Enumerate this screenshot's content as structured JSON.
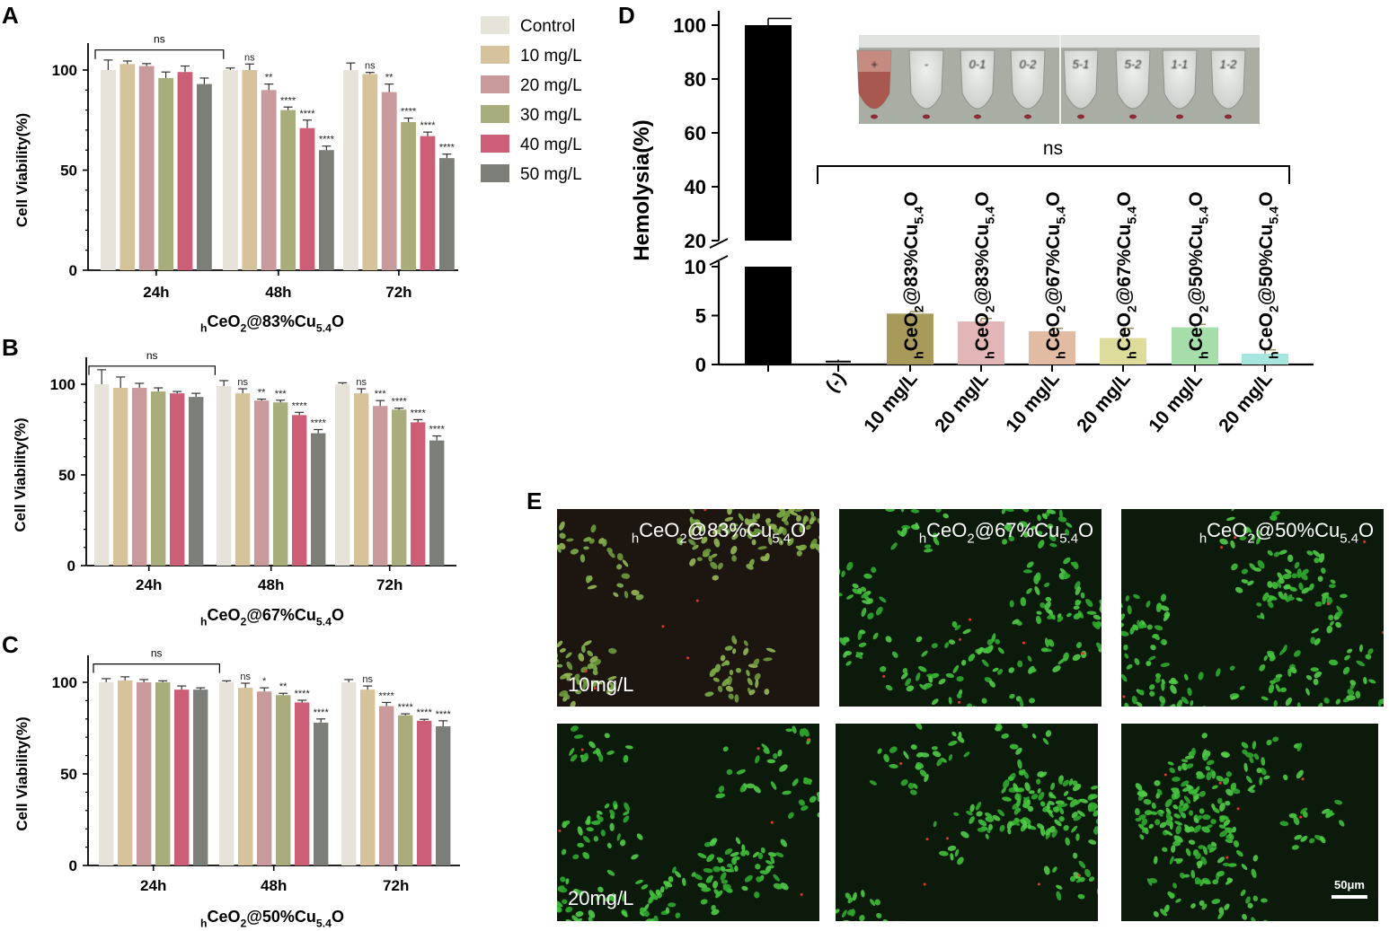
{
  "panel_letters": [
    "A",
    "B",
    "C",
    "D",
    "E"
  ],
  "legend": {
    "entries": [
      "Control",
      "10 mg/L",
      "20 mg/L",
      "30 mg/L",
      "40 mg/L",
      "50 mg/L"
    ],
    "colors": [
      "#e8e3da",
      "#d6c39b",
      "#c99a9c",
      "#a9ad7b",
      "#cc5e77",
      "#7b7f78"
    ]
  },
  "chart_data": [
    {
      "panel": "A",
      "type": "bar",
      "title": "hCeO2@83%Cu5.4O",
      "ylabel": "Cell Viability(%)",
      "ylim": [
        0,
        100
      ],
      "yticks": [
        "0",
        "50",
        "100"
      ],
      "categories": [
        "24h",
        "48h",
        "72h"
      ],
      "series": [
        {
          "name": "Control",
          "values": [
            100,
            100,
            100
          ],
          "errors": [
            5,
            1,
            3.5
          ]
        },
        {
          "name": "10 mg/L",
          "values": [
            103,
            100,
            98
          ],
          "errors": [
            1.5,
            3,
            0.8
          ]
        },
        {
          "name": "20 mg/L",
          "values": [
            102,
            90,
            89
          ],
          "errors": [
            1.2,
            3,
            4
          ]
        },
        {
          "name": "30 mg/L",
          "values": [
            96,
            80,
            74
          ],
          "errors": [
            3,
            1.5,
            2
          ]
        },
        {
          "name": "40 mg/L",
          "values": [
            99,
            71,
            67
          ],
          "errors": [
            3,
            4,
            2
          ]
        },
        {
          "name": "50 mg/L",
          "values": [
            93,
            60,
            56
          ],
          "errors": [
            3,
            2,
            2
          ]
        }
      ],
      "significance": [
        [
          "",
          "",
          "",
          "",
          "",
          ""
        ],
        [
          "",
          "ns",
          "**",
          "****",
          "****",
          "****"
        ],
        [
          "",
          "ns",
          "**",
          "****",
          "****",
          "****"
        ]
      ],
      "bracket_label": "ns"
    },
    {
      "panel": "B",
      "type": "bar",
      "title": "hCeO2@67%Cu5.4O",
      "ylabel": "Cell Viability(%)",
      "ylim": [
        0,
        100
      ],
      "yticks": [
        "0",
        "50",
        "100"
      ],
      "categories": [
        "24h",
        "48h",
        "72h"
      ],
      "series": [
        {
          "name": "Control",
          "values": [
            100,
            99,
            100
          ],
          "errors": [
            8,
            3,
            0.8
          ]
        },
        {
          "name": "10 mg/L",
          "values": [
            98,
            95,
            95
          ],
          "errors": [
            6,
            2.5,
            2.5
          ]
        },
        {
          "name": "20 mg/L",
          "values": [
            98,
            91,
            88
          ],
          "errors": [
            2.5,
            0.8,
            3
          ]
        },
        {
          "name": "30 mg/L",
          "values": [
            96,
            90,
            86
          ],
          "errors": [
            2,
            1.2,
            0.8
          ]
        },
        {
          "name": "40 mg/L",
          "values": [
            95,
            83,
            79
          ],
          "errors": [
            1,
            1.5,
            1.5
          ]
        },
        {
          "name": "50 mg/L",
          "values": [
            93,
            73,
            69
          ],
          "errors": [
            2,
            2,
            2.5
          ]
        }
      ],
      "significance": [
        [
          "",
          "",
          "",
          "",
          "",
          ""
        ],
        [
          "",
          "ns",
          "**",
          "***",
          "****",
          "****"
        ],
        [
          "",
          "ns",
          "***",
          "****",
          "****",
          "****"
        ]
      ],
      "bracket_label": "ns"
    },
    {
      "panel": "C",
      "type": "bar",
      "title": "hCeO2@50%Cu5.4O",
      "ylabel": "Cell Viability(%)",
      "ylim": [
        0,
        100
      ],
      "yticks": [
        "0",
        "50",
        "100"
      ],
      "categories": [
        "24h",
        "48h",
        "72h"
      ],
      "series": [
        {
          "name": "Control",
          "values": [
            100,
            100,
            100
          ],
          "errors": [
            2,
            0.8,
            1.5
          ]
        },
        {
          "name": "10 mg/L",
          "values": [
            101,
            97,
            96
          ],
          "errors": [
            2,
            2.5,
            2
          ]
        },
        {
          "name": "20 mg/L",
          "values": [
            100,
            95,
            87
          ],
          "errors": [
            1.5,
            2,
            2
          ]
        },
        {
          "name": "30 mg/L",
          "values": [
            100,
            93,
            82
          ],
          "errors": [
            0.8,
            1,
            0.8
          ]
        },
        {
          "name": "40 mg/L",
          "values": [
            96,
            89,
            79
          ],
          "errors": [
            2,
            1.2,
            0.8
          ]
        },
        {
          "name": "50 mg/L",
          "values": [
            96,
            78,
            76
          ],
          "errors": [
            1,
            2,
            3
          ]
        }
      ],
      "significance": [
        [
          "",
          "",
          "",
          "",
          "",
          ""
        ],
        [
          "",
          "ns",
          "*",
          "**",
          "****",
          "****"
        ],
        [
          "",
          "ns",
          "****",
          "****",
          "****",
          "****"
        ]
      ],
      "bracket_label": "ns"
    },
    {
      "panel": "D",
      "type": "bar",
      "ylabel": "Hemolysia(%)",
      "axis_break": {
        "lower": [
          0,
          11
        ],
        "upper": [
          20,
          105
        ]
      },
      "yticks_lower": [
        "0",
        "5",
        "10"
      ],
      "yticks_upper": [
        "20",
        "40",
        "60",
        "80",
        "100"
      ],
      "categories": [
        "",
        "(-)",
        "10 mg/L",
        "20 mg/L",
        "10 mg/L",
        "20 mg/L",
        "10 mg/L",
        "20 mg/L"
      ],
      "bar_labels": [
        "",
        "",
        "hCeO2@83%Cu5.4O",
        "hCeO2@83%Cu5.4O",
        "hCeO2@67%Cu5.4O",
        "hCeO2@67%Cu5.4O",
        "hCeO2@50%Cu5.4O",
        "hCeO2@50%Cu5.4O"
      ],
      "values": [
        100,
        0.3,
        5.2,
        4.4,
        3.4,
        2.7,
        3.8,
        1.1
      ],
      "errors": [
        2.5,
        0.2,
        0.2,
        0.3,
        0.3,
        1.0,
        0.3,
        0.4
      ],
      "colors": [
        "#000000",
        "#000000",
        "#a89a5a",
        "#e2b6b6",
        "#e2bca2",
        "#dedc9a",
        "#a6deaa",
        "#a6e6dc"
      ],
      "bracket_label": "ns",
      "photo_tube_labels": [
        "+",
        "-",
        "0-1",
        "0-2",
        "5-1",
        "5-2",
        "1-1",
        "1-2"
      ]
    }
  ],
  "micrographs": {
    "column_titles": [
      "hCeO2@83%Cu5.4O",
      "hCeO2@67%Cu5.4O",
      "hCeO2@50%Cu5.4O"
    ],
    "row_labels": [
      "10mg/L",
      "20mg/L"
    ],
    "scale_bar": "50μm"
  }
}
